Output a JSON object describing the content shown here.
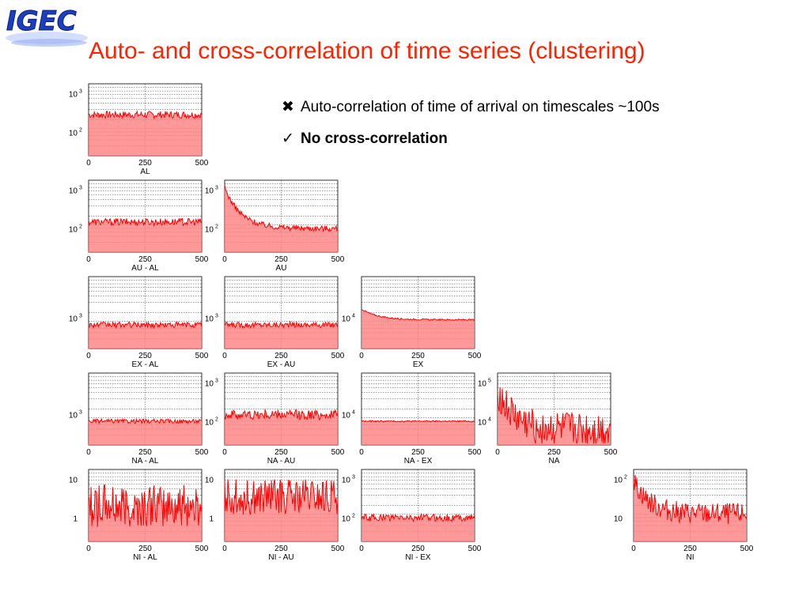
{
  "logo": {
    "text": "IGEC"
  },
  "title": "Auto- and cross-correlation of time series (clustering)",
  "bullets": [
    {
      "icon": "cross-mark-icon",
      "symbol": "✖",
      "text": "Auto-correlation of time of arrival on timescales ~100s"
    },
    {
      "icon": "check-mark-icon",
      "symbol": "✓",
      "text": "No cross-correlation"
    }
  ],
  "colors": {
    "title": "#ff2200",
    "series": "#ff0000",
    "fill": "#ff8080",
    "logo": "#1a3fbf"
  },
  "chart_data": [
    {
      "type": "area",
      "title": "AL",
      "xlim": [
        0,
        500
      ],
      "xticks": [
        "0",
        "250",
        "500"
      ],
      "yscale": "log",
      "yticks": [
        {
          "label": "10",
          "exp": "3"
        },
        {
          "label": "10",
          "exp": "2"
        }
      ],
      "shape": "flat",
      "level": 0.57,
      "noise": 0.05
    },
    {
      "type": "area",
      "title": "AU - AL",
      "xlim": [
        0,
        500
      ],
      "xticks": [
        "0",
        "250",
        "500"
      ],
      "yscale": "log",
      "yticks": [
        {
          "label": "10",
          "exp": "3"
        },
        {
          "label": "10",
          "exp": "2"
        }
      ],
      "shape": "flat",
      "level": 0.42,
      "noise": 0.05
    },
    {
      "type": "area",
      "title": "AU",
      "xlim": [
        0,
        500
      ],
      "xticks": [
        "0",
        "250",
        "500"
      ],
      "yscale": "log",
      "yticks": [
        {
          "label": "10",
          "exp": "3"
        },
        {
          "label": "10",
          "exp": "2"
        }
      ],
      "shape": "decay",
      "level": 0.33,
      "peak": 0.9,
      "noise": 0.04
    },
    {
      "type": "area",
      "title": "EX - AL",
      "xlim": [
        0,
        500
      ],
      "xticks": [
        "0",
        "250",
        "500"
      ],
      "yscale": "log",
      "yticks": [
        {
          "label": "10",
          "exp": "3"
        }
      ],
      "shape": "flat",
      "level": 0.33,
      "noise": 0.04
    },
    {
      "type": "area",
      "title": "EX - AU",
      "xlim": [
        0,
        500
      ],
      "xticks": [
        "0",
        "250",
        "500"
      ],
      "yscale": "log",
      "yticks": [
        {
          "label": "10",
          "exp": "3"
        }
      ],
      "shape": "flat",
      "level": 0.33,
      "noise": 0.04
    },
    {
      "type": "area",
      "title": "EX",
      "xlim": [
        0,
        500
      ],
      "xticks": [
        "0",
        "250",
        "500"
      ],
      "yscale": "log",
      "yticks": [
        {
          "label": "10",
          "exp": "4"
        }
      ],
      "shape": "decay",
      "level": 0.4,
      "peak": 0.55,
      "noise": 0.01
    },
    {
      "type": "area",
      "title": "NA - AL",
      "xlim": [
        0,
        500
      ],
      "xticks": [
        "0",
        "250",
        "500"
      ],
      "yscale": "log",
      "yticks": [
        {
          "label": "10",
          "exp": "3"
        }
      ],
      "shape": "flat",
      "level": 0.33,
      "noise": 0.03
    },
    {
      "type": "area",
      "title": "NA - AU",
      "xlim": [
        0,
        500
      ],
      "xticks": [
        "0",
        "250",
        "500"
      ],
      "yscale": "log",
      "yticks": [
        {
          "label": "10",
          "exp": "3"
        },
        {
          "label": "10",
          "exp": "2"
        }
      ],
      "shape": "flat",
      "level": 0.42,
      "noise": 0.07
    },
    {
      "type": "area",
      "title": "NA - EX",
      "xlim": [
        0,
        500
      ],
      "xticks": [
        "0",
        "250",
        "500"
      ],
      "yscale": "log",
      "yticks": [
        {
          "label": "10",
          "exp": "4"
        }
      ],
      "shape": "flat",
      "level": 0.33,
      "noise": 0.01
    },
    {
      "type": "area",
      "title": "NA",
      "xlim": [
        0,
        500
      ],
      "xticks": [
        "0",
        "250",
        "500"
      ],
      "yscale": "log",
      "yticks": [
        {
          "label": "10",
          "exp": "5"
        },
        {
          "label": "10",
          "exp": "4"
        }
      ],
      "shape": "decay",
      "level": 0.2,
      "peak": 0.75,
      "noise": 0.25
    },
    {
      "type": "area",
      "title": "NI - AL",
      "xlim": [
        0,
        500
      ],
      "xticks": [
        "0",
        "250",
        "500"
      ],
      "yscale": "log",
      "yticks": [
        {
          "label": "10",
          "exp": ""
        },
        {
          "label": "1",
          "exp": ""
        }
      ],
      "shape": "flat",
      "level": 0.5,
      "noise": 0.3
    },
    {
      "type": "area",
      "title": "NI - AU",
      "xlim": [
        0,
        500
      ],
      "xticks": [
        "0",
        "250",
        "500"
      ],
      "yscale": "log",
      "yticks": [
        {
          "label": "10",
          "exp": ""
        },
        {
          "label": "1",
          "exp": ""
        }
      ],
      "shape": "flat",
      "level": 0.62,
      "noise": 0.25
    },
    {
      "type": "area",
      "title": "NI - EX",
      "xlim": [
        0,
        500
      ],
      "xticks": [
        "0",
        "250",
        "500"
      ],
      "yscale": "log",
      "yticks": [
        {
          "label": "10",
          "exp": "3"
        },
        {
          "label": "10",
          "exp": "2"
        }
      ],
      "shape": "flat",
      "level": 0.33,
      "noise": 0.05
    },
    {
      "type": "area",
      "title": "NI",
      "xlim": [
        0,
        500
      ],
      "xticks": [
        "0",
        "250",
        "500"
      ],
      "yscale": "log",
      "yticks": [
        {
          "label": "10",
          "exp": "2"
        },
        {
          "label": "10",
          "exp": ""
        }
      ],
      "shape": "decay",
      "level": 0.38,
      "peak": 0.85,
      "noise": 0.15
    }
  ]
}
